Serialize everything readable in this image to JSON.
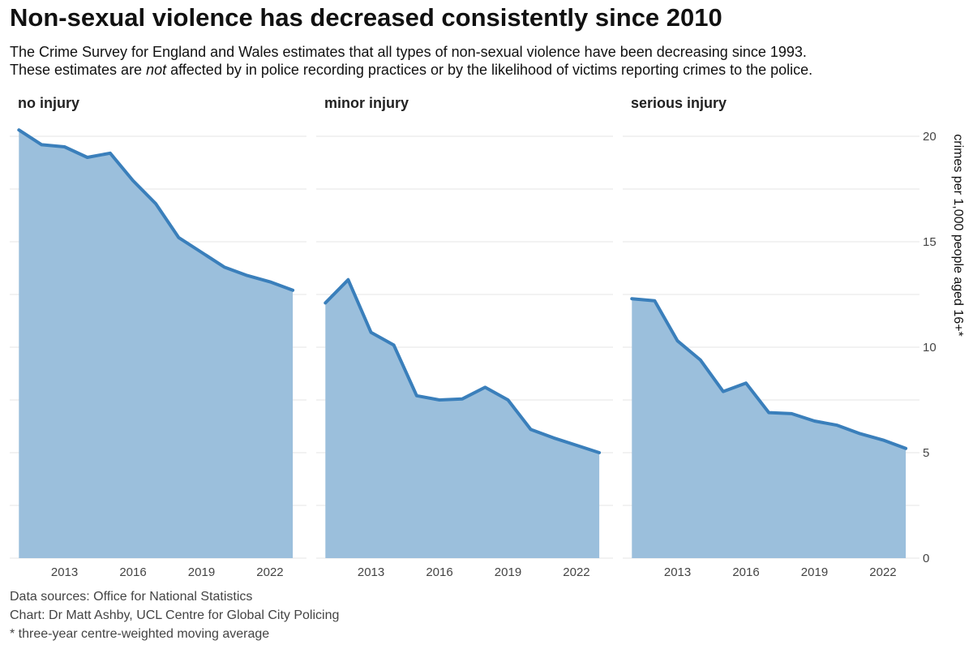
{
  "title": "Non-sexual violence has decreased consistently since 2010",
  "subtitle": {
    "line1": "The Crime Survey for England and Wales estimates that all types of non-sexual violence have been decreasing since 1993.",
    "line2_before": "These estimates are ",
    "line2_emph": "not",
    "line2_after": " affected by in police recording practices or by the likelihood of victims reporting crimes to the police."
  },
  "caption": {
    "sources": "Data sources: Office for National Statistics",
    "chart_by": "Chart: Dr Matt Ashby, UCL Centre for Global City Policing",
    "note": "* three-year centre-weighted moving average"
  },
  "chart_data": {
    "type": "area",
    "ylabel": "crimes per 1,000 people aged 16+*",
    "ylim": [
      0,
      20.5
    ],
    "yticks": [
      0,
      5,
      10,
      15,
      20
    ],
    "xlim": [
      2010.6,
      2023.6
    ],
    "xticks": [
      2013,
      2016,
      2019,
      2022
    ],
    "x": [
      2011,
      2012,
      2013,
      2014,
      2015,
      2016,
      2017,
      2018,
      2019,
      2020,
      2021,
      2022,
      2023
    ],
    "series": [
      {
        "name": "no injury",
        "values": [
          20.3,
          19.6,
          19.5,
          19.0,
          19.2,
          17.9,
          16.8,
          15.2,
          14.5,
          13.8,
          13.4,
          13.1,
          12.7
        ]
      },
      {
        "name": "minor injury",
        "values": [
          12.1,
          13.2,
          10.7,
          10.1,
          7.7,
          7.5,
          7.55,
          8.1,
          7.5,
          6.1,
          5.7,
          5.35,
          5.0
        ]
      },
      {
        "name": "serious injury",
        "values": [
          12.3,
          12.2,
          10.3,
          9.4,
          7.9,
          8.3,
          6.9,
          6.85,
          6.5,
          6.3,
          5.9,
          5.6,
          5.2
        ]
      }
    ],
    "grid": true,
    "legend": "none",
    "color": "#3a7fbb",
    "fill_color": "#9bbfdc"
  }
}
